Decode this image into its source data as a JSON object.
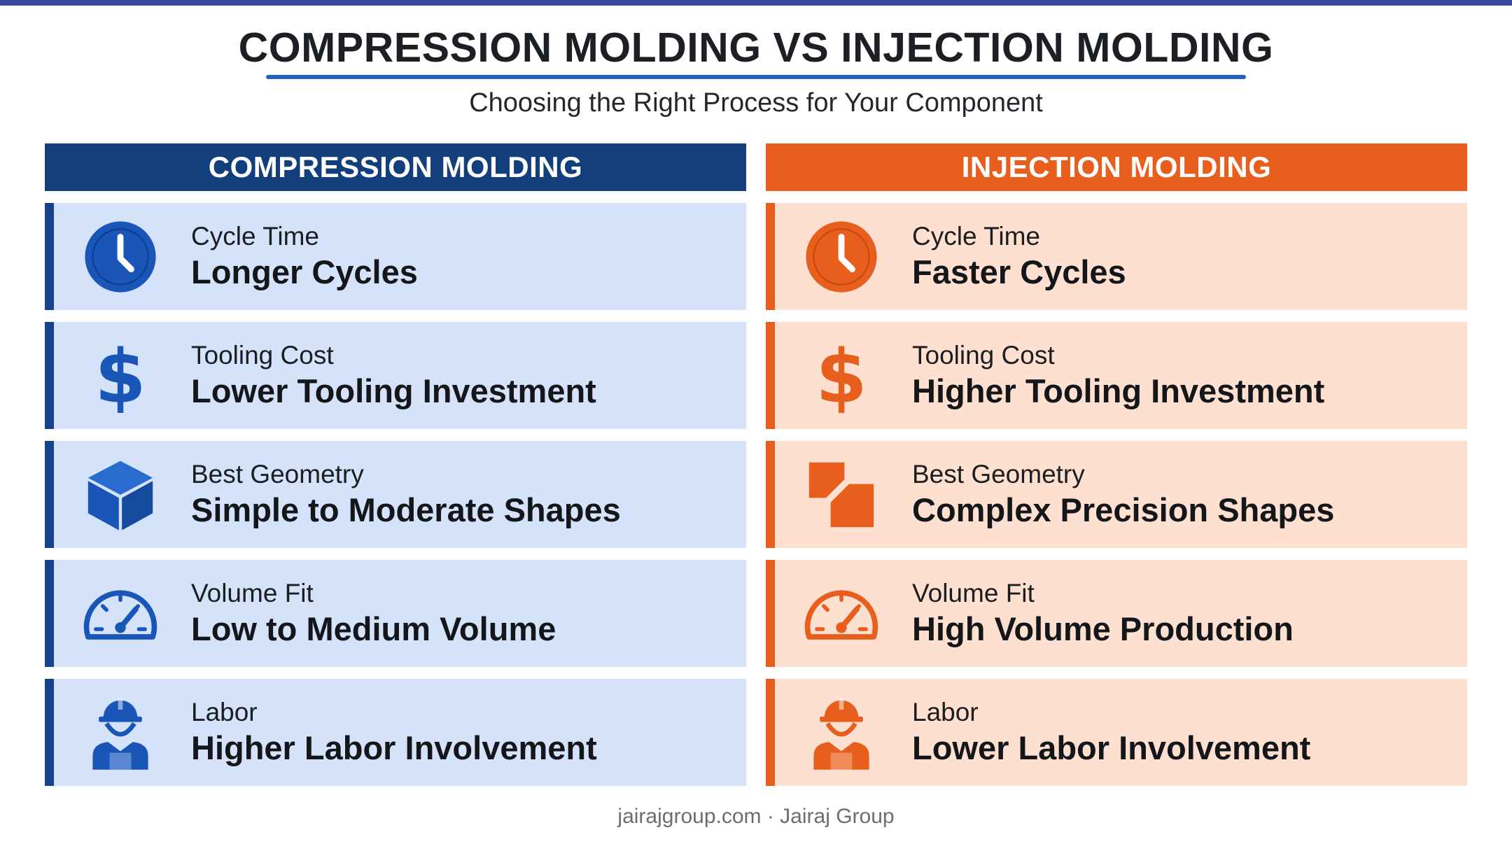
{
  "title": "COMPRESSION MOLDING VS INJECTION MOLDING",
  "subtitle": "Choosing the Right Process for Your Component",
  "colors": {
    "compression": "#15428a",
    "injection": "#e85e1d",
    "underline": "#1f63c7"
  },
  "compression": {
    "header": "COMPRESSION MOLDING",
    "rows": [
      {
        "icon": "clock-icon",
        "label": "Cycle Time",
        "value": "Longer Cycles"
      },
      {
        "icon": "dollar-icon",
        "label": "Tooling Cost",
        "value": "Lower Tooling Investment"
      },
      {
        "icon": "cube-icon",
        "label": "Best Geometry",
        "value": "Simple to Moderate Shapes"
      },
      {
        "icon": "gauge-icon",
        "label": "Volume Fit",
        "value": "Low to Medium Volume"
      },
      {
        "icon": "worker-icon",
        "label": "Labor",
        "value": "Higher Labor Involvement"
      }
    ]
  },
  "injection": {
    "header": "INJECTION MOLDING",
    "rows": [
      {
        "icon": "clock-icon",
        "label": "Cycle Time",
        "value": "Faster Cycles"
      },
      {
        "icon": "dollar-icon",
        "label": "Tooling Cost",
        "value": "Higher Tooling Investment"
      },
      {
        "icon": "complex-shapes-icon",
        "label": "Best Geometry",
        "value": "Complex Precision Shapes"
      },
      {
        "icon": "gauge-icon",
        "label": "Volume Fit",
        "value": "High Volume Production"
      },
      {
        "icon": "worker-icon",
        "label": "Labor",
        "value": "Lower Labor Involvement"
      }
    ]
  },
  "footer": "jairajgroup.com · Jairaj Group"
}
